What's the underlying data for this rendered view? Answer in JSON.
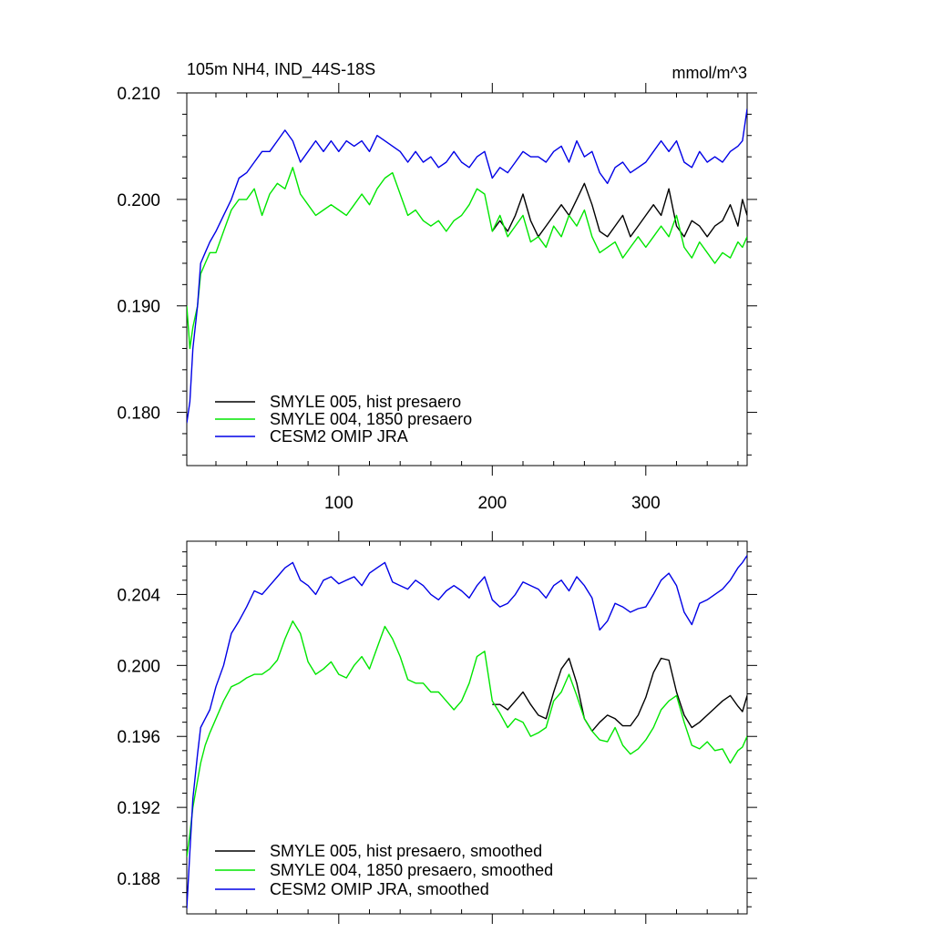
{
  "chart_data": [
    {
      "type": "line",
      "title": "105m NH4, IND_44S-18S",
      "units_label": "mmol/m^3",
      "xlim": [
        1,
        366
      ],
      "ylim": [
        0.175,
        0.21
      ],
      "x_ticks": [
        100,
        200,
        300
      ],
      "x_tick_labels": [
        "100",
        "200",
        "300"
      ],
      "y_ticks": [
        0.18,
        0.19,
        0.2,
        0.21
      ],
      "y_tick_labels": [
        "0.180",
        "0.190",
        "0.200",
        "0.210"
      ],
      "legend_position": "bottom-left",
      "series": [
        {
          "name": "SMYLE 005, hist presaero",
          "color": "#000000",
          "x": [
            200,
            205,
            210,
            215,
            220,
            225,
            230,
            235,
            240,
            245,
            250,
            255,
            260,
            265,
            270,
            275,
            280,
            285,
            290,
            295,
            300,
            305,
            310,
            315,
            320,
            325,
            330,
            335,
            340,
            345,
            350,
            355,
            360,
            363,
            366
          ],
          "values": [
            0.197,
            0.198,
            0.197,
            0.1985,
            0.2005,
            0.198,
            0.1965,
            0.1975,
            0.1985,
            0.1995,
            0.1985,
            0.2,
            0.2015,
            0.1995,
            0.197,
            0.1965,
            0.1975,
            0.1985,
            0.1965,
            0.1975,
            0.1985,
            0.1995,
            0.1985,
            0.201,
            0.1975,
            0.1965,
            0.198,
            0.1975,
            0.1965,
            0.1975,
            0.198,
            0.1995,
            0.1975,
            0.2,
            0.1985
          ]
        },
        {
          "name": "SMYLE 004, 1850 presaero",
          "color": "#00e600",
          "x": [
            1,
            3,
            5,
            8,
            10,
            13,
            16,
            20,
            25,
            30,
            35,
            40,
            45,
            50,
            55,
            60,
            65,
            70,
            75,
            80,
            85,
            90,
            95,
            100,
            105,
            110,
            115,
            120,
            125,
            130,
            135,
            140,
            145,
            150,
            155,
            160,
            165,
            170,
            175,
            180,
            185,
            190,
            195,
            200,
            205,
            210,
            215,
            220,
            225,
            230,
            235,
            240,
            245,
            250,
            255,
            260,
            265,
            270,
            275,
            280,
            285,
            290,
            295,
            300,
            305,
            310,
            315,
            320,
            325,
            330,
            335,
            340,
            345,
            350,
            355,
            360,
            363,
            366
          ],
          "values": [
            0.19,
            0.186,
            0.188,
            0.19,
            0.193,
            0.194,
            0.195,
            0.195,
            0.197,
            0.199,
            0.2,
            0.2,
            0.201,
            0.1985,
            0.2005,
            0.2015,
            0.201,
            0.203,
            0.2005,
            0.1995,
            0.1985,
            0.199,
            0.1995,
            0.199,
            0.1985,
            0.1995,
            0.2005,
            0.1995,
            0.201,
            0.202,
            0.2025,
            0.2005,
            0.1985,
            0.199,
            0.198,
            0.1975,
            0.198,
            0.197,
            0.198,
            0.1985,
            0.1995,
            0.201,
            0.2005,
            0.197,
            0.1985,
            0.1965,
            0.1975,
            0.1985,
            0.196,
            0.1965,
            0.1955,
            0.1975,
            0.1965,
            0.1985,
            0.1975,
            0.199,
            0.1965,
            0.195,
            0.1955,
            0.196,
            0.1945,
            0.1955,
            0.1965,
            0.1955,
            0.1965,
            0.1975,
            0.1965,
            0.1985,
            0.1955,
            0.1945,
            0.196,
            0.195,
            0.194,
            0.195,
            0.1945,
            0.196,
            0.1955,
            0.1965
          ]
        },
        {
          "name": "CESM2 OMIP JRA",
          "color": "#0000e6",
          "x": [
            1,
            3,
            5,
            8,
            10,
            13,
            16,
            20,
            25,
            30,
            35,
            40,
            45,
            50,
            55,
            60,
            65,
            70,
            75,
            80,
            85,
            90,
            95,
            100,
            105,
            110,
            115,
            120,
            125,
            130,
            135,
            140,
            145,
            150,
            155,
            160,
            165,
            170,
            175,
            180,
            185,
            190,
            195,
            200,
            205,
            210,
            215,
            220,
            225,
            230,
            235,
            240,
            245,
            250,
            255,
            260,
            265,
            270,
            275,
            280,
            285,
            290,
            295,
            300,
            305,
            310,
            315,
            320,
            325,
            330,
            335,
            340,
            345,
            350,
            355,
            360,
            363,
            366
          ],
          "values": [
            0.179,
            0.181,
            0.186,
            0.19,
            0.194,
            0.195,
            0.196,
            0.197,
            0.1985,
            0.2,
            0.202,
            0.2025,
            0.2035,
            0.2045,
            0.2045,
            0.2055,
            0.2065,
            0.2055,
            0.2035,
            0.2045,
            0.2055,
            0.2045,
            0.2055,
            0.2045,
            0.2055,
            0.205,
            0.2055,
            0.2045,
            0.206,
            0.2055,
            0.205,
            0.2045,
            0.2035,
            0.2045,
            0.2035,
            0.204,
            0.203,
            0.2035,
            0.2045,
            0.2035,
            0.203,
            0.204,
            0.2045,
            0.202,
            0.203,
            0.2025,
            0.2035,
            0.2045,
            0.204,
            0.204,
            0.2035,
            0.2045,
            0.205,
            0.2035,
            0.2055,
            0.204,
            0.2045,
            0.2025,
            0.2015,
            0.203,
            0.2035,
            0.2025,
            0.203,
            0.2035,
            0.2045,
            0.2055,
            0.2045,
            0.2055,
            0.2035,
            0.203,
            0.2045,
            0.2035,
            0.204,
            0.2035,
            0.2045,
            0.205,
            0.2055,
            0.2085
          ]
        }
      ]
    },
    {
      "type": "line",
      "title": "",
      "xlim": [
        1,
        366
      ],
      "ylim": [
        0.186,
        0.207
      ],
      "x_ticks": [
        100,
        200,
        300
      ],
      "x_tick_labels": [],
      "y_ticks": [
        0.188,
        0.192,
        0.196,
        0.2,
        0.204
      ],
      "y_tick_labels": [
        "0.188",
        "0.192",
        "0.196",
        "0.200",
        "0.204"
      ],
      "legend_position": "bottom-left",
      "series": [
        {
          "name": "SMYLE 005, hist presaero, smoothed",
          "color": "#000000",
          "x": [
            200,
            205,
            210,
            215,
            220,
            225,
            230,
            235,
            240,
            245,
            250,
            255,
            260,
            265,
            270,
            275,
            280,
            285,
            290,
            295,
            300,
            305,
            310,
            315,
            320,
            325,
            330,
            335,
            340,
            345,
            350,
            355,
            360,
            363,
            366
          ],
          "values": [
            0.1978,
            0.1978,
            0.1975,
            0.198,
            0.1985,
            0.1978,
            0.1972,
            0.197,
            0.1985,
            0.1998,
            0.2004,
            0.199,
            0.197,
            0.1963,
            0.1968,
            0.1972,
            0.197,
            0.1966,
            0.1966,
            0.1972,
            0.1982,
            0.1996,
            0.2004,
            0.2003,
            0.1985,
            0.1972,
            0.1965,
            0.1968,
            0.1972,
            0.1976,
            0.198,
            0.1983,
            0.1977,
            0.1974,
            0.1983
          ]
        },
        {
          "name": "SMYLE 004, 1850 presaero, smoothed",
          "color": "#00e600",
          "x": [
            1,
            3,
            5,
            8,
            10,
            13,
            16,
            20,
            25,
            30,
            35,
            40,
            45,
            50,
            55,
            60,
            65,
            70,
            75,
            80,
            85,
            90,
            95,
            100,
            105,
            110,
            115,
            120,
            125,
            130,
            135,
            140,
            145,
            150,
            155,
            160,
            165,
            170,
            175,
            180,
            185,
            190,
            195,
            200,
            205,
            210,
            215,
            220,
            225,
            230,
            235,
            240,
            245,
            250,
            255,
            260,
            265,
            270,
            275,
            280,
            285,
            290,
            295,
            300,
            305,
            310,
            315,
            320,
            325,
            330,
            335,
            340,
            345,
            350,
            355,
            360,
            363,
            366
          ],
          "values": [
            0.1892,
            0.1905,
            0.192,
            0.1935,
            0.1945,
            0.1955,
            0.1962,
            0.197,
            0.198,
            0.1988,
            0.199,
            0.1993,
            0.1995,
            0.1995,
            0.1998,
            0.2003,
            0.2015,
            0.2025,
            0.2018,
            0.2002,
            0.1995,
            0.1998,
            0.2002,
            0.1995,
            0.1993,
            0.2,
            0.2005,
            0.1998,
            0.201,
            0.2022,
            0.2015,
            0.2005,
            0.1992,
            0.199,
            0.199,
            0.1985,
            0.1985,
            0.198,
            0.1975,
            0.198,
            0.199,
            0.2005,
            0.2008,
            0.198,
            0.1973,
            0.1965,
            0.197,
            0.1968,
            0.196,
            0.1962,
            0.1965,
            0.198,
            0.1985,
            0.1995,
            0.1983,
            0.197,
            0.1963,
            0.1958,
            0.1957,
            0.1965,
            0.1955,
            0.195,
            0.1953,
            0.1958,
            0.1965,
            0.1975,
            0.198,
            0.1983,
            0.1968,
            0.1955,
            0.1953,
            0.1957,
            0.1952,
            0.1953,
            0.1945,
            0.1952,
            0.1954,
            0.196
          ]
        },
        {
          "name": "CESM2 OMIP JRA, smoothed",
          "color": "#0000e6",
          "x": [
            1,
            3,
            5,
            8,
            10,
            13,
            16,
            20,
            25,
            30,
            35,
            40,
            45,
            50,
            55,
            60,
            65,
            70,
            75,
            80,
            85,
            90,
            95,
            100,
            105,
            110,
            115,
            120,
            125,
            130,
            135,
            140,
            145,
            150,
            155,
            160,
            165,
            170,
            175,
            180,
            185,
            190,
            195,
            200,
            205,
            210,
            215,
            220,
            225,
            230,
            235,
            240,
            245,
            250,
            255,
            260,
            265,
            270,
            275,
            280,
            285,
            290,
            295,
            300,
            305,
            310,
            315,
            320,
            325,
            330,
            335,
            340,
            345,
            350,
            355,
            360,
            363,
            366
          ],
          "values": [
            0.1863,
            0.1895,
            0.1925,
            0.195,
            0.1965,
            0.197,
            0.1975,
            0.1988,
            0.2,
            0.2018,
            0.2025,
            0.2033,
            0.2042,
            0.204,
            0.2045,
            0.205,
            0.2055,
            0.2058,
            0.2048,
            0.2045,
            0.204,
            0.2048,
            0.205,
            0.2046,
            0.2048,
            0.205,
            0.2045,
            0.2052,
            0.2055,
            0.2058,
            0.2047,
            0.2045,
            0.2043,
            0.2048,
            0.2045,
            0.204,
            0.2037,
            0.2042,
            0.2045,
            0.2042,
            0.2038,
            0.2045,
            0.205,
            0.2037,
            0.2033,
            0.2035,
            0.204,
            0.2047,
            0.2045,
            0.2043,
            0.2038,
            0.2045,
            0.2048,
            0.2042,
            0.205,
            0.2045,
            0.2038,
            0.202,
            0.2025,
            0.2035,
            0.2033,
            0.203,
            0.2032,
            0.2033,
            0.204,
            0.2048,
            0.2052,
            0.2045,
            0.203,
            0.2023,
            0.2035,
            0.2037,
            0.204,
            0.2043,
            0.2048,
            0.2055,
            0.2058,
            0.2062
          ]
        }
      ]
    }
  ]
}
